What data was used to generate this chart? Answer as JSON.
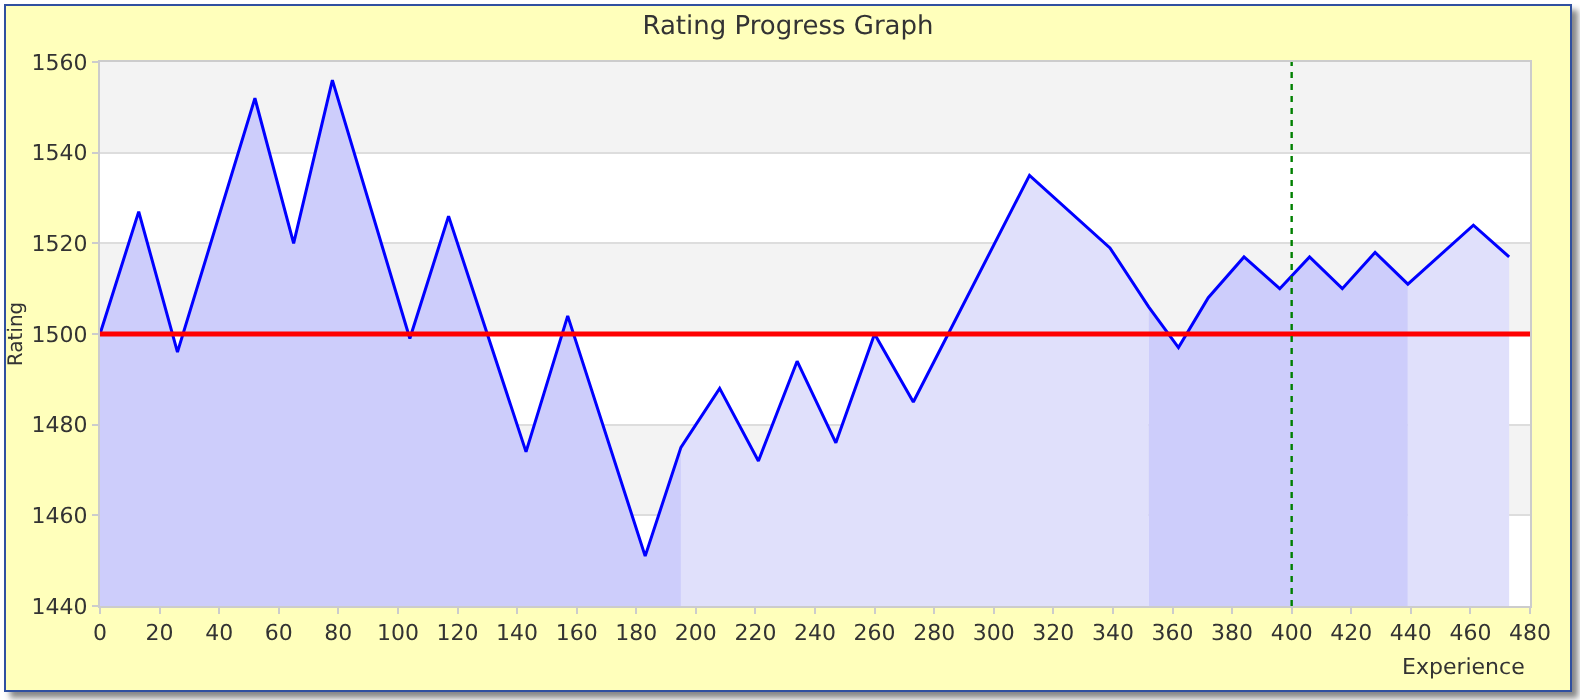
{
  "chart_data": {
    "type": "area",
    "title": "Rating Progress Graph",
    "xlabel": "Experience",
    "ylabel": "Rating",
    "series": [
      {
        "color": "#cdcdfb",
        "x": [
          0,
          13,
          26,
          52,
          65,
          78,
          104,
          117,
          143,
          157,
          183,
          195
        ],
        "values": [
          1500,
          1527,
          1496,
          1552,
          1520,
          1556,
          1499,
          1526,
          1474,
          1504,
          1451,
          1475
        ]
      },
      {
        "color": "#e0e0fb",
        "x": [
          195,
          208,
          221,
          234,
          247,
          260,
          273,
          312,
          339,
          352
        ],
        "values": [
          1475,
          1488,
          1472,
          1494,
          1476,
          1500,
          1485,
          1535,
          1519,
          1506
        ]
      },
      {
        "color": "#cdcdfb",
        "x": [
          352,
          362,
          372,
          384,
          396,
          406,
          417,
          428,
          439
        ],
        "values": [
          1506,
          1497,
          1508,
          1517,
          1510,
          1517,
          1510,
          1518,
          1511
        ]
      },
      {
        "color": "#e0e0fb",
        "x": [
          439,
          461,
          473
        ],
        "values": [
          1511,
          1524,
          1517
        ]
      },
      {
        "type": "line",
        "color": "#0000ff",
        "x": [
          0,
          13,
          26,
          52,
          65,
          78,
          104,
          117,
          143,
          157,
          183,
          195,
          208,
          221,
          234,
          247,
          260,
          273,
          312,
          339,
          352,
          362,
          372,
          384,
          396,
          406,
          417,
          428,
          439,
          461,
          473
        ],
        "values": [
          1500,
          1527,
          1496,
          1552,
          1520,
          1556,
          1499,
          1526,
          1474,
          1504,
          1451,
          1475,
          1488,
          1472,
          1494,
          1476,
          1500,
          1485,
          1535,
          1519,
          1506,
          1497,
          1508,
          1517,
          1510,
          1517,
          1510,
          1518,
          1511,
          1524,
          1517
        ]
      }
    ],
    "xlim": [
      0,
      480
    ],
    "xticks": [
      0,
      20,
      40,
      60,
      80,
      100,
      120,
      140,
      160,
      180,
      200,
      220,
      240,
      260,
      280,
      300,
      320,
      340,
      360,
      380,
      400,
      420,
      440,
      460,
      480
    ],
    "ylim": [
      1440,
      1560
    ],
    "yticks": [
      1440,
      1460,
      1480,
      1500,
      1520,
      1540,
      1560
    ],
    "ref_lines": [
      {
        "axis": "y",
        "value": 1500,
        "color": "#ff0000",
        "line_style": "solid"
      },
      {
        "axis": "x",
        "value": 400,
        "color": "#008000",
        "line_style": "dotted"
      }
    ],
    "grid": "y",
    "marker": "none",
    "line_style": "solid"
  }
}
